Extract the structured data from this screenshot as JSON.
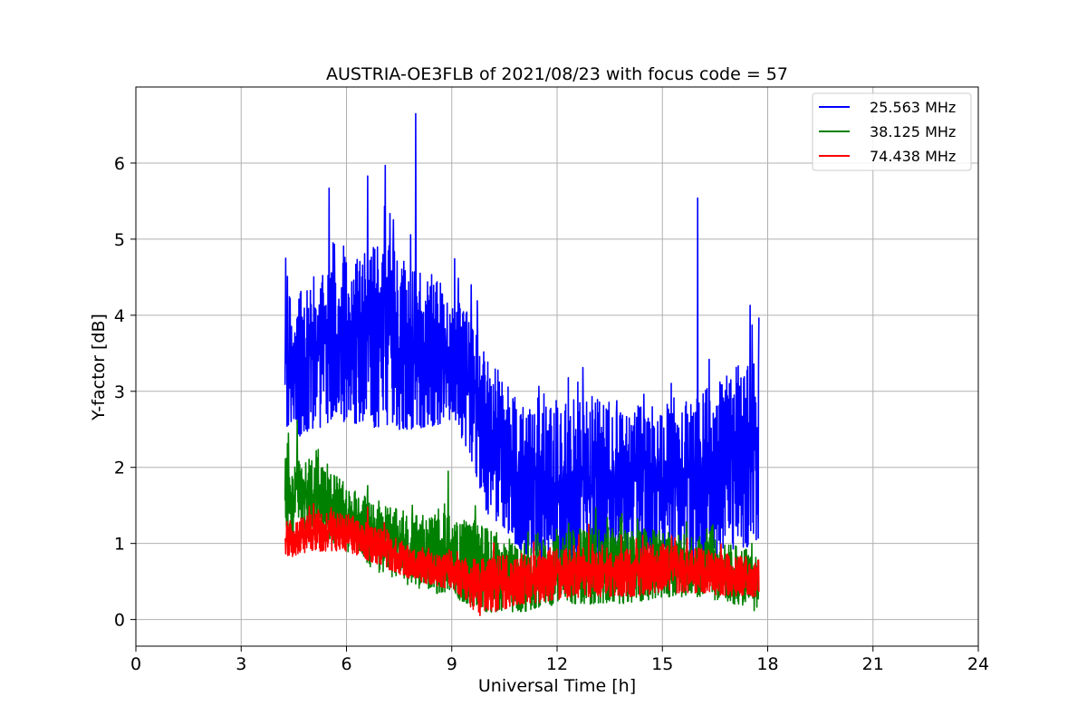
{
  "chart_data": {
    "type": "line",
    "title": "AUSTRIA-OE3FLB of 2021/08/23 with focus code = 57",
    "xlabel": "Universal Time [h]",
    "ylabel": "Y-factor [dB]",
    "xlim": [
      0,
      24
    ],
    "ylim": [
      -0.35,
      7.0
    ],
    "xticks": [
      0,
      3,
      6,
      9,
      12,
      15,
      18,
      21,
      24
    ],
    "yticks": [
      0,
      1,
      2,
      3,
      4,
      5,
      6
    ],
    "grid": true,
    "legend_position": "upper right",
    "series": [
      {
        "name": "25.563 MHz",
        "color": "#0000ff",
        "x_range": [
          4.25,
          17.75
        ],
        "profile_x": [
          4.25,
          5,
          6,
          7,
          8,
          9,
          9.5,
          10,
          11,
          12,
          13,
          14,
          15,
          16,
          17,
          17.75
        ],
        "profile_low": [
          2.3,
          2.5,
          2.6,
          2.5,
          2.5,
          2.6,
          2.2,
          1.4,
          0.9,
          0.5,
          0.6,
          0.9,
          0.8,
          0.8,
          0.9,
          1.0
        ],
        "profile_high": [
          4.2,
          4.5,
          4.8,
          5.0,
          4.6,
          4.4,
          4.0,
          3.5,
          2.8,
          2.8,
          3.0,
          2.8,
          2.9,
          3.0,
          3.3,
          3.5
        ],
        "peaks": [
          [
            4.27,
            4.75
          ],
          [
            5.5,
            5.67
          ],
          [
            6.6,
            5.83
          ],
          [
            7.1,
            5.97
          ],
          [
            7.97,
            6.65
          ],
          [
            16.0,
            5.54
          ],
          [
            17.5,
            4.13
          ],
          [
            17.77,
            3.97
          ]
        ]
      },
      {
        "name": "38.125 MHz",
        "color": "#008000",
        "x_range": [
          4.25,
          17.75
        ],
        "profile_x": [
          4.25,
          5,
          6,
          7,
          8,
          9,
          10,
          11,
          12,
          13,
          14,
          15,
          16,
          17,
          17.75
        ],
        "profile_low": [
          1.0,
          1.2,
          0.9,
          0.6,
          0.4,
          0.3,
          0.1,
          0.1,
          0.2,
          0.2,
          0.2,
          0.3,
          0.3,
          0.2,
          0.1
        ],
        "profile_high": [
          2.2,
          2.1,
          1.8,
          1.5,
          1.4,
          1.4,
          1.2,
          1.0,
          1.1,
          1.3,
          1.2,
          1.2,
          1.1,
          1.0,
          0.9
        ],
        "peaks": [
          [
            4.6,
            2.62
          ],
          [
            8.9,
            1.95
          ],
          [
            17.55,
            1.0
          ]
        ]
      },
      {
        "name": "74.438 MHz",
        "color": "#ff0000",
        "x_range": [
          4.25,
          17.75
        ],
        "profile_x": [
          4.25,
          5,
          6,
          7,
          8,
          9,
          9.8,
          11,
          12,
          13,
          14,
          15,
          16,
          17,
          17.75
        ],
        "profile_low": [
          0.8,
          0.9,
          0.9,
          0.7,
          0.5,
          0.4,
          0.05,
          0.2,
          0.25,
          0.3,
          0.3,
          0.35,
          0.35,
          0.3,
          0.3
        ],
        "profile_high": [
          1.3,
          1.4,
          1.4,
          1.2,
          0.9,
          0.85,
          0.8,
          0.9,
          0.95,
          1.0,
          0.95,
          1.0,
          0.95,
          0.85,
          0.8
        ],
        "peaks": [
          [
            6.6,
            1.48
          ],
          [
            12.9,
            1.25
          ]
        ]
      }
    ]
  }
}
